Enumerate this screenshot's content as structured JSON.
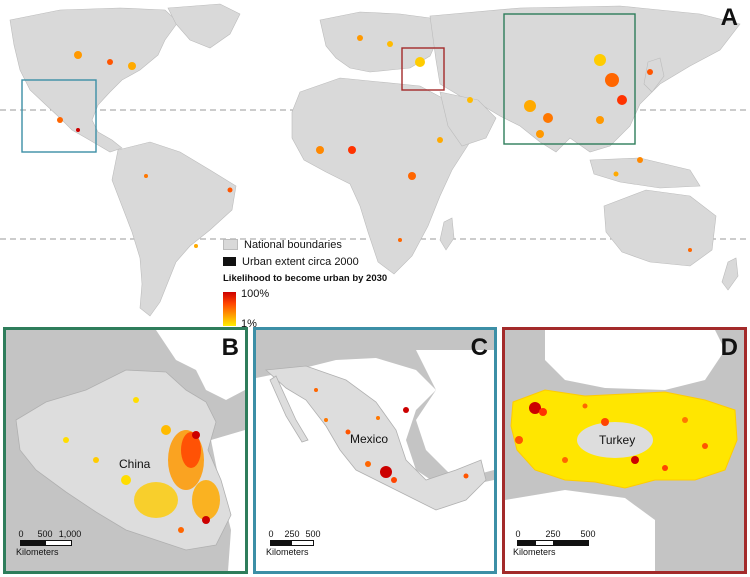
{
  "figure": {
    "panels": {
      "a": {
        "letter": "A"
      },
      "b": {
        "letter": "B",
        "label": "China",
        "scale": {
          "ticks": [
            "0",
            "500",
            "1,000"
          ],
          "unit": "Kilometers"
        }
      },
      "c": {
        "letter": "C",
        "label": "Mexico",
        "scale": {
          "ticks": [
            "0",
            "250",
            "500"
          ],
          "unit": "Kilometers"
        }
      },
      "d": {
        "letter": "D",
        "label": "Turkey",
        "scale": {
          "ticks": [
            "0",
            "250",
            "500"
          ],
          "unit": "Kilometers"
        }
      }
    },
    "legend": {
      "national_boundaries": "National boundaries",
      "urban_extent": "Urban extent circa 2000",
      "likelihood_title": "Likelihood to become urban by 2030",
      "max_label": "100%",
      "min_label": "1%"
    },
    "colors": {
      "land": "#d9d9d9",
      "ocean": "#ffffff",
      "likelihood_low": "#ffee00",
      "likelihood_high": "#cc0000",
      "urban": "#111111",
      "box_china": "#2e7d5b",
      "box_mexico": "#3c8fa6",
      "box_turkey": "#a32a2a"
    }
  }
}
